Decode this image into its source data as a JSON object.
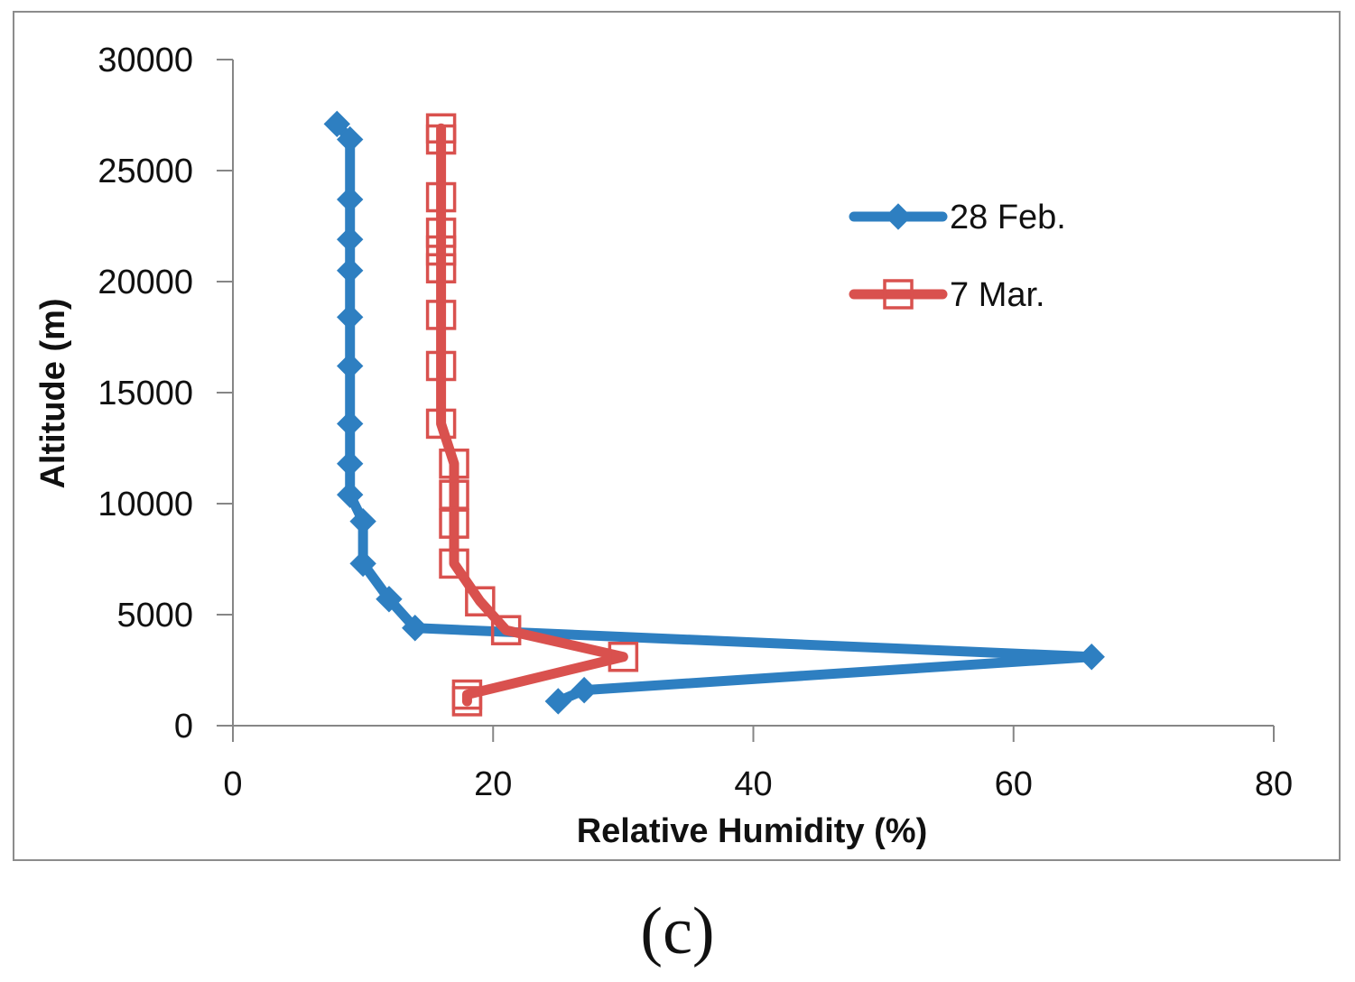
{
  "panel_label": "(c)",
  "chart_data": {
    "type": "line",
    "title": "",
    "xlabel": "Relative Humidity (%)",
    "ylabel": "Altitude (m)",
    "xlim": [
      0,
      80
    ],
    "ylim": [
      0,
      30000
    ],
    "xticks": [
      0,
      20,
      40,
      60,
      80
    ],
    "yticks": [
      0,
      5000,
      10000,
      15000,
      20000,
      25000,
      30000
    ],
    "grid": false,
    "legend_position": "right",
    "series": [
      {
        "name": "28 Feb.",
        "color": "#2e7fc1",
        "marker": "diamond",
        "points": [
          [
            8,
            27100
          ],
          [
            9,
            26400
          ],
          [
            9,
            23700
          ],
          [
            9,
            21900
          ],
          [
            9,
            20500
          ],
          [
            9,
            18400
          ],
          [
            9,
            16200
          ],
          [
            9,
            13600
          ],
          [
            9,
            11800
          ],
          [
            9,
            10400
          ],
          [
            10,
            9200
          ],
          [
            10,
            7300
          ],
          [
            12,
            5700
          ],
          [
            14,
            4400
          ],
          [
            66,
            3100
          ],
          [
            27,
            1600
          ],
          [
            25,
            1100
          ]
        ]
      },
      {
        "name": "7 Mar.",
        "color": "#d9514e",
        "marker": "square-open",
        "points": [
          [
            16,
            26900
          ],
          [
            16,
            26400
          ],
          [
            16,
            23800
          ],
          [
            16,
            22200
          ],
          [
            16,
            21400
          ],
          [
            16,
            20600
          ],
          [
            16,
            18500
          ],
          [
            16,
            16200
          ],
          [
            16,
            13600
          ],
          [
            17,
            11800
          ],
          [
            17,
            10400
          ],
          [
            17,
            9100
          ],
          [
            17,
            7300
          ],
          [
            19,
            5600
          ],
          [
            21,
            4300
          ],
          [
            30,
            3100
          ],
          [
            18,
            1400
          ],
          [
            18,
            1100
          ]
        ]
      }
    ]
  }
}
